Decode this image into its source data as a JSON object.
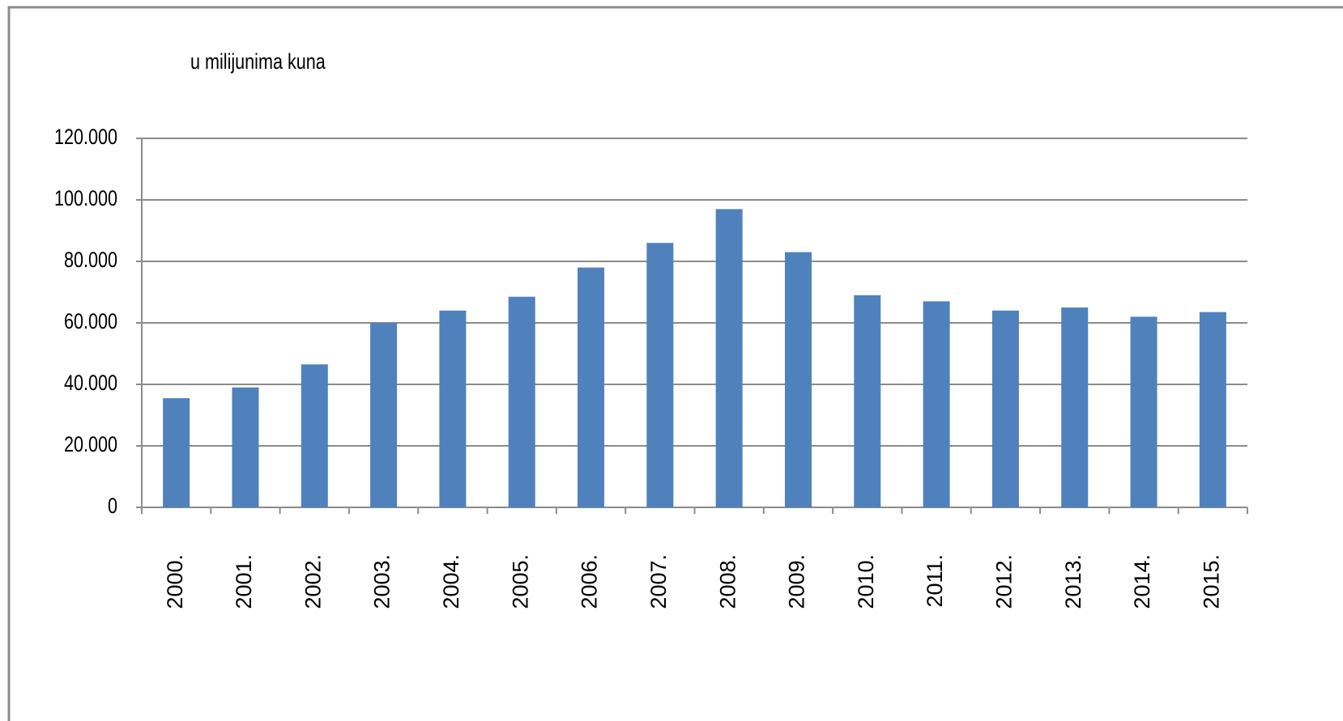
{
  "chart_data": {
    "type": "bar",
    "subtitle": "u milijunima kuna",
    "categories": [
      "2000.",
      "2001.",
      "2002.",
      "2003.",
      "2004.",
      "2005.",
      "2006.",
      "2007.",
      "2008.",
      "2009.",
      "2010.",
      "2011.",
      "2012.",
      "2013.",
      "2014.",
      "2015."
    ],
    "values": [
      35500,
      39000,
      46500,
      60000,
      64000,
      68500,
      78000,
      86000,
      97000,
      83000,
      69000,
      67000,
      64000,
      65000,
      62000,
      63500
    ],
    "color": "#4f81bd",
    "ylim": [
      0,
      120000
    ],
    "yticks": [
      0,
      {
        "value": 20000,
        "label": "20.000"
      },
      {
        "value": 40000,
        "label": "40.000"
      },
      {
        "value": 60000,
        "label": "60.000"
      },
      {
        "value": 80000,
        "label": "80.000"
      },
      {
        "value": 100000,
        "label": "100.000"
      },
      {
        "value": 120000,
        "label": "120.000"
      }
    ],
    "grid": true
  }
}
